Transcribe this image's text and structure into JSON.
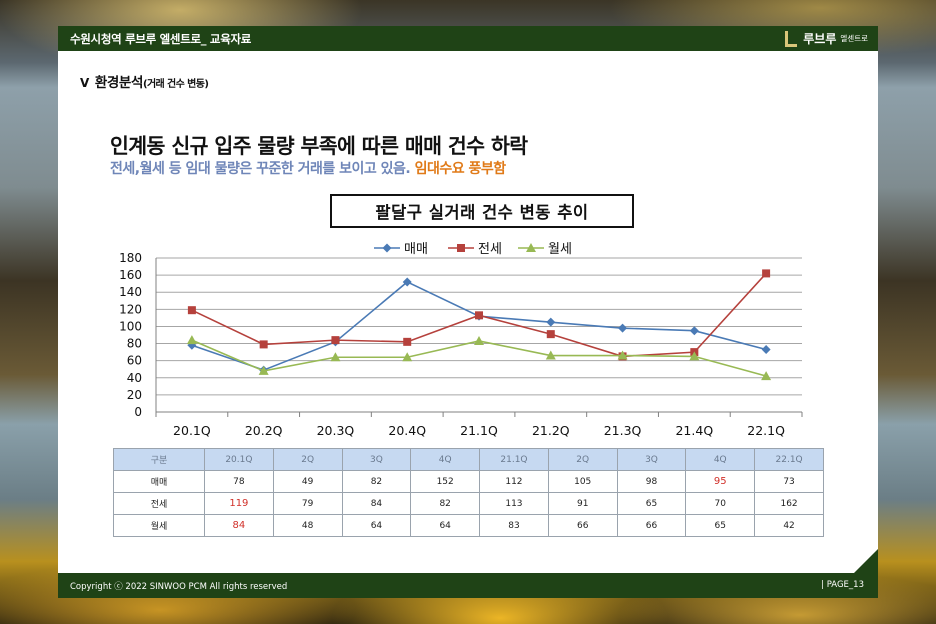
{
  "header": {
    "title": "수원시청역 루브루 엘센트로_ 교육자료",
    "logo_name": "루브루",
    "logo_sub": "엘센트로"
  },
  "section": {
    "chevron": "V",
    "title": "환경분석",
    "subtitle": "(거래 건수 변동)"
  },
  "headline": "인계동 신규 입주 물량 부족에 따른 매매 건수 하락",
  "subline": {
    "blue": "전세,월세 등  임대 물량은 꾸준한 거래를 보이고 있음.",
    "orange": " 임대수요 풍부함"
  },
  "chart_data": {
    "type": "line",
    "title": "팔달구 실거래 건수 변동 추이",
    "categories": [
      "20.1Q",
      "20.2Q",
      "20.3Q",
      "20.4Q",
      "21.1Q",
      "21.2Q",
      "21.3Q",
      "21.4Q",
      "22.1Q"
    ],
    "series": [
      {
        "name": "매매",
        "color": "#4a7ab5",
        "marker": "diamond",
        "values": [
          78,
          49,
          82,
          152,
          112,
          105,
          98,
          95,
          73
        ]
      },
      {
        "name": "전세",
        "color": "#b5413c",
        "marker": "square",
        "values": [
          119,
          79,
          84,
          82,
          113,
          91,
          65,
          70,
          162
        ]
      },
      {
        "name": "월세",
        "color": "#98b954",
        "marker": "triangle",
        "values": [
          84,
          48,
          64,
          64,
          83,
          66,
          66,
          65,
          42
        ]
      }
    ],
    "ylim": [
      0,
      180
    ],
    "yticks": [
      0,
      20,
      40,
      60,
      80,
      100,
      120,
      140,
      160,
      180
    ],
    "grid": true,
    "legend": "top-center"
  },
  "table": {
    "header": [
      "구분",
      "20.1Q",
      "2Q",
      "3Q",
      "4Q",
      "21.1Q",
      "2Q",
      "3Q",
      "4Q",
      "22.1Q"
    ],
    "rows": [
      {
        "label": "매매",
        "values": [
          "78",
          "49",
          "82",
          "152",
          "112",
          "105",
          "98",
          "95",
          "73"
        ],
        "highlight": [
          7
        ]
      },
      {
        "label": "전세",
        "values": [
          "119",
          "79",
          "84",
          "82",
          "113",
          "91",
          "65",
          "70",
          "162"
        ],
        "highlight": [
          0
        ]
      },
      {
        "label": "월세",
        "values": [
          "84",
          "48",
          "64",
          "64",
          "83",
          "66",
          "66",
          "65",
          "42"
        ],
        "highlight": [
          0
        ]
      }
    ],
    "highlight_color": "#d1302a"
  },
  "footer": {
    "copyright": "Copyright ⓒ 2022 SINWOO PCM All rights reserved",
    "page": "|  PAGE_13"
  }
}
